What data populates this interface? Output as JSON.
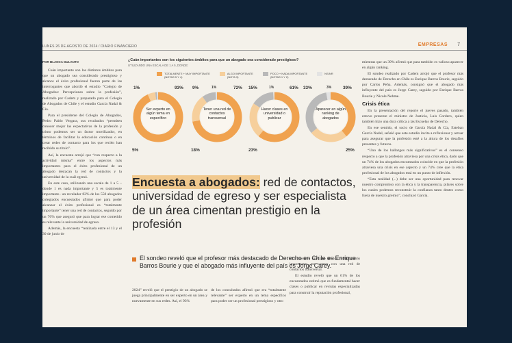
{
  "header": {
    "date_line": "LUNES 26 DE AGOSTO DE 2024 / DIARIO FINANCIERO",
    "section": "EMPRESAS",
    "page": "7"
  },
  "infographic": {
    "question": "¿Cuán importantes son los siguientes ámbitos para que un abogado sea considerado prestigioso?",
    "subtitle": "UTILIZANDO UNA ESCALA DE 1 A 5, DONDE:",
    "legend": [
      {
        "label": "TOTALMENTE + MUY IMPORTANTE",
        "note": "(NOTAS 5 Y 4)",
        "color": "#f0a24f"
      },
      {
        "label": "ALGO IMPORTANTE",
        "note": "(NOTA 3)",
        "color": "#f6cf9c"
      },
      {
        "label": "POCO + NADA IMPORTANTE",
        "note": "(NOTAS 1 Y 2)",
        "color": "#b9b9b9"
      },
      {
        "label": "NS/NR",
        "note": "",
        "color": "#e3e3e3"
      }
    ],
    "donuts": [
      {
        "label": "Ser experto en algún tema en específico",
        "values": [
          93,
          5,
          1,
          1
        ],
        "top_left": "1%",
        "top_right": "93%",
        "bottom": "5%"
      },
      {
        "label": "Tener una red de contactos transversal",
        "values": [
          72,
          18,
          9,
          1
        ],
        "top_left": "9%",
        "top_right": "72%",
        "bottom": "18%",
        "extra": "1%"
      },
      {
        "label": "Hacer clases en universidad o publicar",
        "values": [
          61,
          23,
          15,
          1
        ],
        "top_left": "15%",
        "top_right": "61%",
        "bottom": "23%",
        "extra": "1%"
      },
      {
        "label": "Aparecer en algún ranking de abogados",
        "values": [
          39,
          25,
          33,
          3
        ],
        "top_left": "33%",
        "top_right": "39%",
        "bottom": "25%",
        "extra": "3%"
      }
    ]
  },
  "article": {
    "title_highlight": "Encuesta a abogados:",
    "title_rest": " red de contactos, universidad de egreso y ser especialista de un área cimentan prestigio en la profesión",
    "deck": "El sondeo reveló que el profesor más destacado de Derecho en Chile es Enrique Barros Bourie y que el abogado más influyente del país es Jorge Carey.",
    "byline": "POR BLANCA DULANTO",
    "col1": [
      "Cuán importante son los distintos ámbitos para que un abogado sea considerado prestigioso y alcance el éxito profesional fueron parte de las interrogantes que abordó el estudio “Colegio de Abogados: Percepciones sobre la profesión”, realizado por Cadem y preparado para el Colegio de Abogados de Chile y el estudio García Nadal & Cía.",
      "Para el presidente del Colegio de Abogados, Pedro Pablo Vergara, sus resultados “permiten conocer mejor las expectativas de la profesión y cómo podemos ser un factor movilizador, en términos de facilitar la educación continua o en crear redes de contacto para los que recién han recibido su título”.",
      "Así, la encuesta arrojó que “con respecto a la actividad misma” entre los aspectos más importantes para el éxito profesional de un abogado destacan la red de contactos y la universidad de la cuál egresó.",
      "En este caso, utilizando una escala de 1 a 5 –donde 1 es nada importante y 5 es totalmente importante– un revelador 82% de los 550 abogados colegiados encuestados afirmó que para poder alcanzar el éxito profesional es “totalmente importante” tener una red de contactos, seguido por un 76% que aseguró que para lograr ese cometido es relevante la universidad de egreso.",
      "Además, la encuesta “realizada entre el 13 y el 30 de junio de"
    ],
    "col2a": "2024” reveló que el prestigio de un abogado se juega principalmente en ser experto en un área y nuevamente en sus redes. Así, el 93%",
    "col2b": "de los consultados afirmó que era “totalmente relevante” ser experto en un tema específico para poder ser un profesional prestigioso y otro",
    "col3": [
      "72% sostuvo que uno de los ámbitos más importantes era contar con una red de contactos transversal.",
      "El estudio reveló que un 61% de los encuestados estimó que es fundamental hacer clases o publicar en revistas especializadas para construir la reputación profesional,"
    ],
    "col4": [
      "mientras que un 39% afirmó que para también es valioso aparecer en algún ranking.",
      "El sondeo realizado por Cadem arrojó que el profesor más destacado de Derecho en Chile es Enrique Barros Bourie, seguido por Carlos Peña. Además, consignó que el abogado más influyente del país es Jorge Carey, seguido por Enrique Barros Bourie y Nicole Nehme."
    ],
    "col4_heading": "Crisis ética",
    "col4b": [
      "En la presentación del reporte el jueves pasado, también estuvo presente el ministro de Justicia, Luis Cordero, quien también hizo una dura crítica a las Escuelas de Derecho.",
      "En ese sentido, el socio de García Nadal & Cía, Esteban García Nadal, señaló que este estudio invita a reflexionar y actuar para asegurar que la profesión esté a la altura de los desafíos presentes y futuros.",
      "“Uno de los hallazgos más significativos” es el consenso respecto a que la profesión atraviesa por una crisis ética, dado que un 74% de los abogados encuestados coincide en que la profesión atraviesa una crisis en ese aspecto y un 74% cree que la ética profesional de los abogados está en un punto de inflexión.",
      "“Esta realidad (...) debe ser una oportunidad para renovar nuestro compromiso con la ética y la transparencia, pilares sobre los cuales podemos reconstruir la confianza tanto dentro como fuera de nuestro gremio”, concluyó García."
    ]
  }
}
